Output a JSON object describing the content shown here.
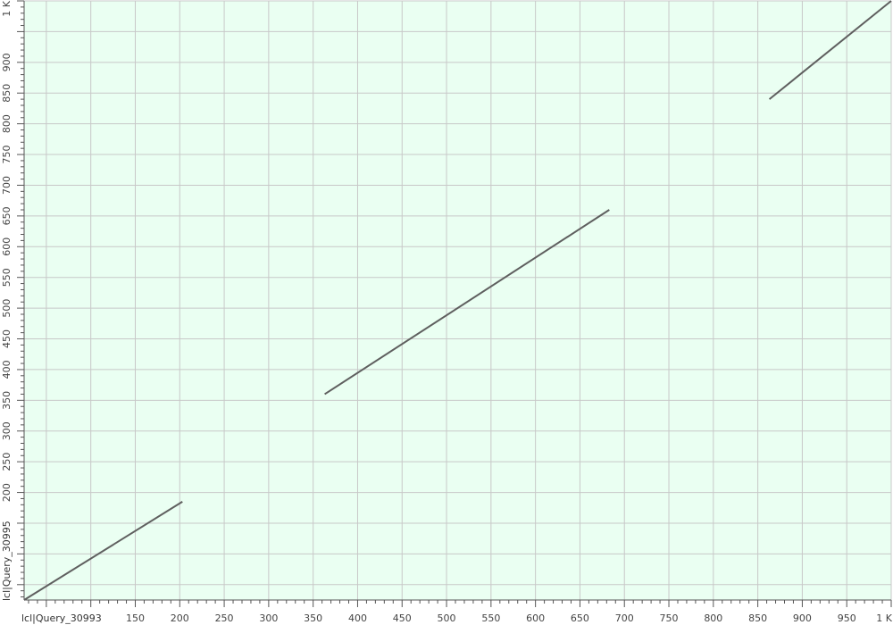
{
  "chart_data": {
    "type": "line",
    "xlabel": "lcl|Query_30993",
    "ylabel": "lcl|Query_30995",
    "xlim": [
      25,
      1000
    ],
    "ylim": [
      25,
      1000
    ],
    "grid": true,
    "x_ticks": [
      {
        "value": 150,
        "label": "150"
      },
      {
        "value": 200,
        "label": "200"
      },
      {
        "value": 250,
        "label": "250"
      },
      {
        "value": 300,
        "label": "300"
      },
      {
        "value": 350,
        "label": "350"
      },
      {
        "value": 400,
        "label": "400"
      },
      {
        "value": 450,
        "label": "450"
      },
      {
        "value": 500,
        "label": "500"
      },
      {
        "value": 550,
        "label": "550"
      },
      {
        "value": 600,
        "label": "600"
      },
      {
        "value": 650,
        "label": "650"
      },
      {
        "value": 700,
        "label": "700"
      },
      {
        "value": 750,
        "label": "750"
      },
      {
        "value": 800,
        "label": "800"
      },
      {
        "value": 850,
        "label": "850"
      },
      {
        "value": 900,
        "label": "900"
      },
      {
        "value": 950,
        "label": "950"
      },
      {
        "value": 1000,
        "label": "1 K"
      }
    ],
    "y_ticks": [
      {
        "value": 200,
        "label": "200"
      },
      {
        "value": 250,
        "label": "250"
      },
      {
        "value": 300,
        "label": "300"
      },
      {
        "value": 350,
        "label": "350"
      },
      {
        "value": 400,
        "label": "400"
      },
      {
        "value": 450,
        "label": "450"
      },
      {
        "value": 500,
        "label": "500"
      },
      {
        "value": 550,
        "label": "550"
      },
      {
        "value": 600,
        "label": "600"
      },
      {
        "value": 650,
        "label": "650"
      },
      {
        "value": 700,
        "label": "700"
      },
      {
        "value": 750,
        "label": "750"
      },
      {
        "value": 800,
        "label": "800"
      },
      {
        "value": 850,
        "label": "850"
      },
      {
        "value": 900,
        "label": "900"
      },
      {
        "value": 1000,
        "label": "1 K"
      }
    ],
    "series": [
      {
        "x": [
          25,
          203
        ],
        "y": [
          25,
          185
        ]
      },
      {
        "x": [
          363,
          683
        ],
        "y": [
          360,
          660
        ]
      },
      {
        "x": [
          863,
          1000
        ],
        "y": [
          840,
          1000
        ]
      }
    ]
  },
  "colors": {
    "background": "#eafff2",
    "grid": "#c8c8c8",
    "axis": "#555555",
    "line": "#5f5f5f"
  }
}
